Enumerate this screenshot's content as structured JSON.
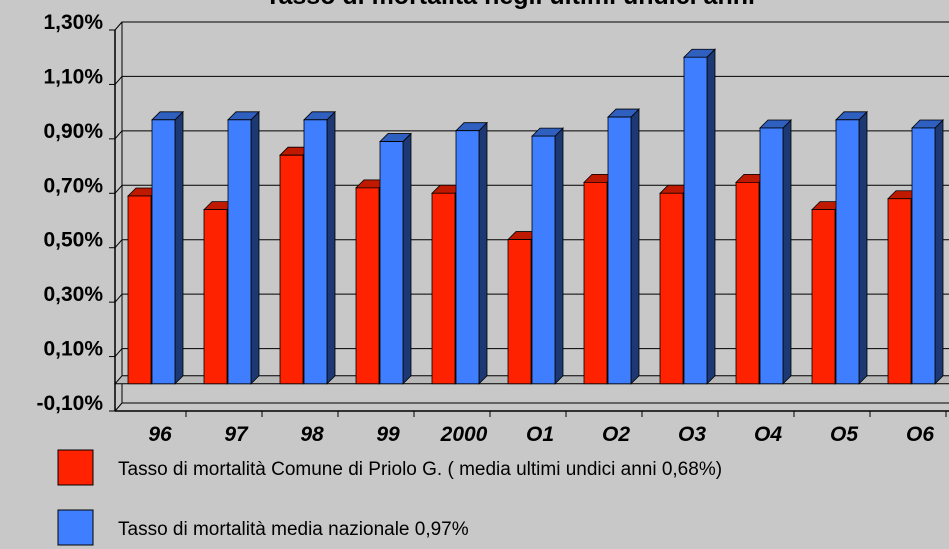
{
  "chart_data": {
    "type": "bar3d",
    "title": "Tasso di mortalità negli ultimi undici anni",
    "categories": [
      "96",
      "97",
      "98",
      "99",
      "2000",
      "O1",
      "O2",
      "O3",
      "O4",
      "O5",
      "O6"
    ],
    "series": [
      {
        "name": "Tasso di mortalità Comune di Priolo G. ( media ultimi undici anni 0,68%)",
        "color": "#ff2200",
        "values": [
          0.69,
          0.64,
          0.84,
          0.72,
          0.7,
          0.53,
          0.74,
          0.7,
          0.74,
          0.64,
          0.68
        ]
      },
      {
        "name": "Tasso di mortalità  media nazionale 0,97%",
        "color": "#3f7fff",
        "values": [
          0.97,
          0.97,
          0.97,
          0.89,
          0.93,
          0.91,
          0.98,
          1.2,
          0.94,
          0.97,
          0.94
        ]
      }
    ],
    "ylim": [
      -0.1,
      1.3
    ],
    "yticks": [
      {
        "value": -0.1,
        "label": "-0,10%"
      },
      {
        "value": 0.1,
        "label": "0,10%"
      },
      {
        "value": 0.3,
        "label": "0,30%"
      },
      {
        "value": 0.5,
        "label": "0,50%"
      },
      {
        "value": 0.7,
        "label": "0,70%"
      },
      {
        "value": 0.9,
        "label": "0,90%"
      },
      {
        "value": 1.1,
        "label": "1,10%"
      },
      {
        "value": 1.3,
        "label": "1,30%"
      }
    ],
    "grid": true
  }
}
